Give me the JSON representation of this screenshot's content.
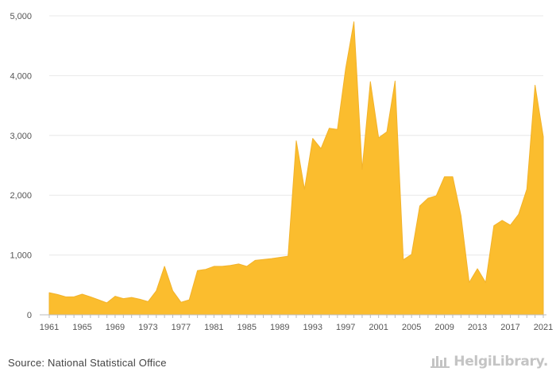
{
  "chart_data": {
    "type": "area",
    "x": [
      1961,
      1962,
      1963,
      1964,
      1965,
      1966,
      1967,
      1968,
      1969,
      1970,
      1971,
      1972,
      1973,
      1974,
      1975,
      1976,
      1977,
      1978,
      1979,
      1980,
      1981,
      1982,
      1983,
      1984,
      1985,
      1986,
      1987,
      1988,
      1989,
      1990,
      1991,
      1992,
      1993,
      1994,
      1995,
      1996,
      1997,
      1998,
      1999,
      2000,
      2001,
      2002,
      2003,
      2004,
      2005,
      2006,
      2007,
      2008,
      2009,
      2010,
      2011,
      2012,
      2013,
      2014,
      2015,
      2016,
      2017,
      2018,
      2019,
      2020,
      2021
    ],
    "values": [
      370,
      340,
      300,
      300,
      345,
      300,
      250,
      200,
      310,
      270,
      290,
      260,
      220,
      400,
      810,
      400,
      210,
      250,
      740,
      760,
      810,
      810,
      825,
      850,
      810,
      910,
      925,
      940,
      960,
      980,
      2910,
      2100,
      2950,
      2780,
      3120,
      3100,
      4120,
      4900,
      2430,
      3900,
      2960,
      3060,
      3910,
      920,
      1010,
      1820,
      1950,
      1990,
      2310,
      2310,
      1660,
      540,
      770,
      540,
      1490,
      1580,
      1500,
      1680,
      2100,
      3840,
      2980
    ],
    "x_tick_labels": [
      "1961",
      "1965",
      "1969",
      "1973",
      "1977",
      "1981",
      "1985",
      "1989",
      "1993",
      "1997",
      "2001",
      "2005",
      "2009",
      "2013",
      "2017",
      "2021"
    ],
    "y_tick_labels": [
      "0",
      "1,000",
      "2,000",
      "3,000",
      "4,000",
      "5,000"
    ],
    "ylim": [
      0,
      5000
    ],
    "xlim": [
      1961,
      2021
    ],
    "grid": true,
    "legend": "none",
    "title": "",
    "xlabel": "",
    "ylabel": "",
    "colors": {
      "fill": "#fbbd2e",
      "line": "#f2b22a",
      "grid": "#e8e8e8",
      "axis": "#bbbbbb"
    }
  },
  "footer": {
    "source": "Source: National Statistical Office",
    "brand": "HelgiLibrary."
  }
}
